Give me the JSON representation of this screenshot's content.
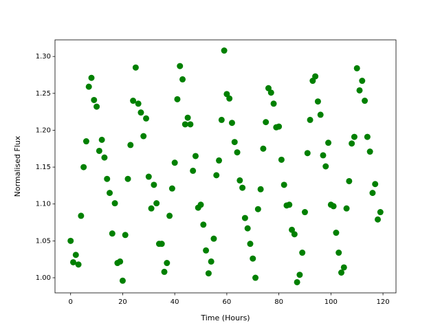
{
  "chart_data": {
    "type": "scatter",
    "x_label": "Time (Hours)",
    "y_label": "Normalised Flux",
    "color": "#008000",
    "x": [
      0,
      1,
      2,
      3,
      4,
      5,
      6,
      7,
      8,
      9,
      10,
      11,
      12,
      13,
      14,
      15,
      16,
      17,
      18,
      19,
      20,
      21,
      22,
      23,
      24,
      25,
      26,
      27,
      28,
      29,
      30,
      31,
      32,
      33,
      34,
      35,
      36,
      37,
      38,
      39,
      40,
      41,
      42,
      43,
      44,
      45,
      46,
      47,
      48,
      49,
      50,
      51,
      52,
      53,
      54,
      55,
      56,
      57,
      58,
      59,
      60,
      61,
      62,
      63,
      64,
      65,
      66,
      67,
      68,
      69,
      70,
      71,
      72,
      73,
      74,
      75,
      76,
      77,
      78,
      79,
      80,
      81,
      82,
      83,
      84,
      85,
      86,
      87,
      88,
      89,
      90,
      91,
      92,
      93,
      94,
      95,
      96,
      97,
      98,
      99,
      100,
      101,
      102,
      103,
      104,
      105,
      106,
      107,
      108,
      109,
      110,
      111,
      112,
      113,
      114,
      115,
      116,
      117,
      118,
      119
    ],
    "values": [
      1.05,
      1.021,
      1.031,
      1.018,
      1.084,
      1.15,
      1.185,
      1.259,
      1.271,
      1.241,
      1.232,
      1.172,
      1.187,
      1.163,
      1.134,
      1.115,
      1.06,
      1.101,
      1.02,
      1.022,
      0.996,
      1.058,
      1.134,
      1.18,
      1.24,
      1.285,
      1.236,
      1.224,
      1.192,
      1.216,
      1.137,
      1.094,
      1.126,
      1.101,
      1.046,
      1.046,
      1.008,
      1.02,
      1.084,
      1.121,
      1.156,
      1.242,
      1.287,
      1.269,
      1.208,
      1.217,
      1.208,
      1.145,
      1.165,
      1.095,
      1.099,
      1.072,
      1.037,
      1.006,
      1.022,
      1.053,
      1.139,
      1.159,
      1.214,
      1.308,
      1.249,
      1.243,
      1.21,
      1.184,
      1.17,
      1.132,
      1.122,
      1.081,
      1.067,
      1.046,
      1.026,
      1.0,
      1.093,
      1.12,
      1.175,
      1.211,
      1.257,
      1.251,
      1.236,
      1.204,
      1.205,
      1.16,
      1.126,
      1.098,
      1.099,
      1.065,
      1.059,
      0.994,
      1.004,
      1.034,
      1.089,
      1.169,
      1.214,
      1.267,
      1.273,
      1.239,
      1.221,
      1.166,
      1.151,
      1.183,
      1.099,
      1.097,
      1.061,
      1.034,
      1.007,
      1.014,
      1.094,
      1.131,
      1.182,
      1.191,
      1.284,
      1.254,
      1.267,
      1.24,
      1.191,
      1.171,
      1.115,
      1.127,
      1.079,
      1.089
    ],
    "xlim": [
      -6,
      125
    ],
    "xticks": [
      0,
      20,
      40,
      60,
      80,
      100,
      120
    ],
    "ylim": [
      0.9795,
      1.3225
    ],
    "yticks": [
      {
        "value": 1.0,
        "label": "1.00"
      },
      1.05,
      {
        "value": 1.1,
        "label": "1.10"
      },
      1.15,
      {
        "value": 1.2,
        "label": "1.20"
      },
      1.25,
      {
        "value": 1.3,
        "label": "1.30"
      }
    ]
  }
}
